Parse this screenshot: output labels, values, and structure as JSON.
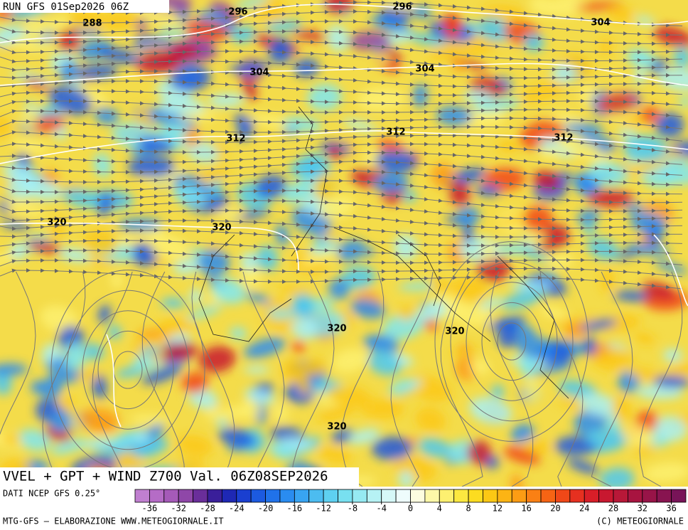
{
  "header": {
    "run": "RUN GFS 01Sep2026 06Z"
  },
  "contour_labels": [
    288,
    296,
    296,
    304,
    304,
    304,
    312,
    312,
    312,
    320,
    320,
    320,
    320,
    320
  ],
  "footer": {
    "title": "VVEL + GPT + WIND Z700 Val. 06Z08SEP2026",
    "source": "DATI NCEP GFS 0.25°",
    "credit": "MTG-GFS – ELABORAZIONE WWW.METEOGIORNALE.IT",
    "copyright": "(C) METEOGIORNALE"
  },
  "colorbar": {
    "lim": [
      -38,
      38
    ],
    "ticks": [
      -36,
      -32,
      -28,
      -24,
      -20,
      -16,
      -12,
      -8,
      -4,
      0,
      4,
      8,
      12,
      16,
      20,
      24,
      28,
      32,
      36
    ],
    "colors": [
      "#c07fd0",
      "#b56cc6",
      "#a55ab8",
      "#8f47a8",
      "#6a2e9a",
      "#3a1f9a",
      "#1e28b4",
      "#1a3fd0",
      "#1c5ae0",
      "#2072ea",
      "#2a8cf0",
      "#38a4f2",
      "#4cbcf0",
      "#5ed0f0",
      "#78e0f0",
      "#96eaf2",
      "#b6f2f4",
      "#d6f8f8",
      "#eefcfc",
      "#fdfde0",
      "#fdf8a8",
      "#fdf070",
      "#fce840",
      "#fcdc20",
      "#fcc814",
      "#fcb414",
      "#fc9c14",
      "#fa8014",
      "#f66414",
      "#f04818",
      "#e63020",
      "#d81e28",
      "#c81830",
      "#b81838",
      "#a81440",
      "#981448",
      "#881450",
      "#781458"
    ]
  }
}
